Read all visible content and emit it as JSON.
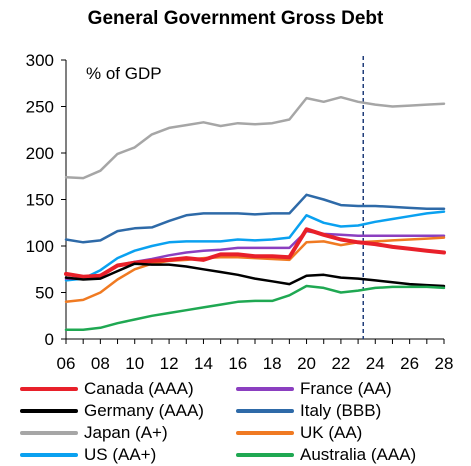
{
  "chart_data": {
    "type": "line",
    "title": "General Government Gross Debt",
    "ylabel": "% of GDP",
    "xlabel": "",
    "ylim": [
      0,
      300
    ],
    "yticks": [
      0,
      50,
      100,
      150,
      200,
      250,
      300
    ],
    "xlim": [
      2006,
      2028
    ],
    "xticks": [
      2006,
      2008,
      2010,
      2012,
      2014,
      2016,
      2018,
      2020,
      2022,
      2024,
      2026,
      2028
    ],
    "xtick_labels": [
      "06",
      "08",
      "10",
      "12",
      "14",
      "16",
      "18",
      "20",
      "22",
      "24",
      "26",
      "28"
    ],
    "vline_x": 2023.3,
    "legend_position": "bottom",
    "x": [
      2006,
      2007,
      2008,
      2009,
      2010,
      2011,
      2012,
      2013,
      2014,
      2015,
      2016,
      2017,
      2018,
      2019,
      2020,
      2021,
      2022,
      2023,
      2024,
      2025,
      2026,
      2027,
      2028
    ],
    "series": [
      {
        "name": "Japan (A+)",
        "color": "#a6a6a6",
        "width": 2.5,
        "values": [
          174,
          173,
          181,
          199,
          206,
          220,
          227,
          230,
          233,
          229,
          232,
          231,
          232,
          236,
          259,
          255,
          260,
          255,
          252,
          250,
          251,
          252,
          253
        ]
      },
      {
        "name": "Italy (BBB)",
        "color": "#2e6aa8",
        "width": 2.5,
        "values": [
          107,
          104,
          106,
          116,
          119,
          120,
          127,
          133,
          135,
          135,
          135,
          134,
          135,
          135,
          155,
          150,
          144,
          143,
          143,
          142,
          141,
          140,
          140
        ]
      },
      {
        "name": "US (AA+)",
        "color": "#0aa1f0",
        "width": 2.5,
        "values": [
          63,
          65,
          74,
          87,
          95,
          100,
          104,
          105,
          105,
          105,
          107,
          106,
          107,
          109,
          133,
          125,
          121,
          122,
          126,
          129,
          132,
          135,
          137
        ]
      },
      {
        "name": "France (AA)",
        "color": "#8b3fc0",
        "width": 2.5,
        "values": [
          65,
          65,
          69,
          79,
          83,
          86,
          90,
          93,
          95,
          96,
          98,
          98,
          98,
          98,
          116,
          113,
          112,
          111,
          111,
          111,
          111,
          111,
          111
        ]
      },
      {
        "name": "UK (AA)",
        "color": "#f07a22",
        "width": 2.5,
        "values": [
          40,
          42,
          50,
          64,
          75,
          81,
          84,
          85,
          87,
          88,
          88,
          87,
          86,
          85,
          104,
          105,
          101,
          104,
          105,
          106,
          107,
          108,
          109
        ]
      },
      {
        "name": "Canada (AAA)",
        "color": "#e8202a",
        "width": 4,
        "values": [
          70,
          67,
          68,
          79,
          82,
          84,
          85,
          87,
          85,
          91,
          91,
          89,
          89,
          88,
          118,
          112,
          107,
          104,
          102,
          99,
          97,
          95,
          93
        ]
      },
      {
        "name": "Germany (AAA)",
        "color": "#000000",
        "width": 2.5,
        "values": [
          66,
          64,
          65,
          73,
          81,
          80,
          80,
          78,
          75,
          72,
          69,
          65,
          62,
          59,
          68,
          69,
          66,
          65,
          63,
          61,
          59,
          58,
          57
        ]
      },
      {
        "name": "Australia (AAA)",
        "color": "#1fa852",
        "width": 2.5,
        "values": [
          10,
          10,
          12,
          17,
          21,
          25,
          28,
          31,
          34,
          37,
          40,
          41,
          41,
          47,
          57,
          55,
          50,
          52,
          55,
          56,
          56,
          56,
          55
        ]
      }
    ],
    "legend": [
      [
        "Canada (AAA)",
        "France (AA)"
      ],
      [
        "Germany (AAA)",
        "Italy (BBB)"
      ],
      [
        "Japan (A+)",
        "UK (AA)"
      ],
      [
        "US (AA+)",
        "Australia (AAA)"
      ]
    ]
  }
}
